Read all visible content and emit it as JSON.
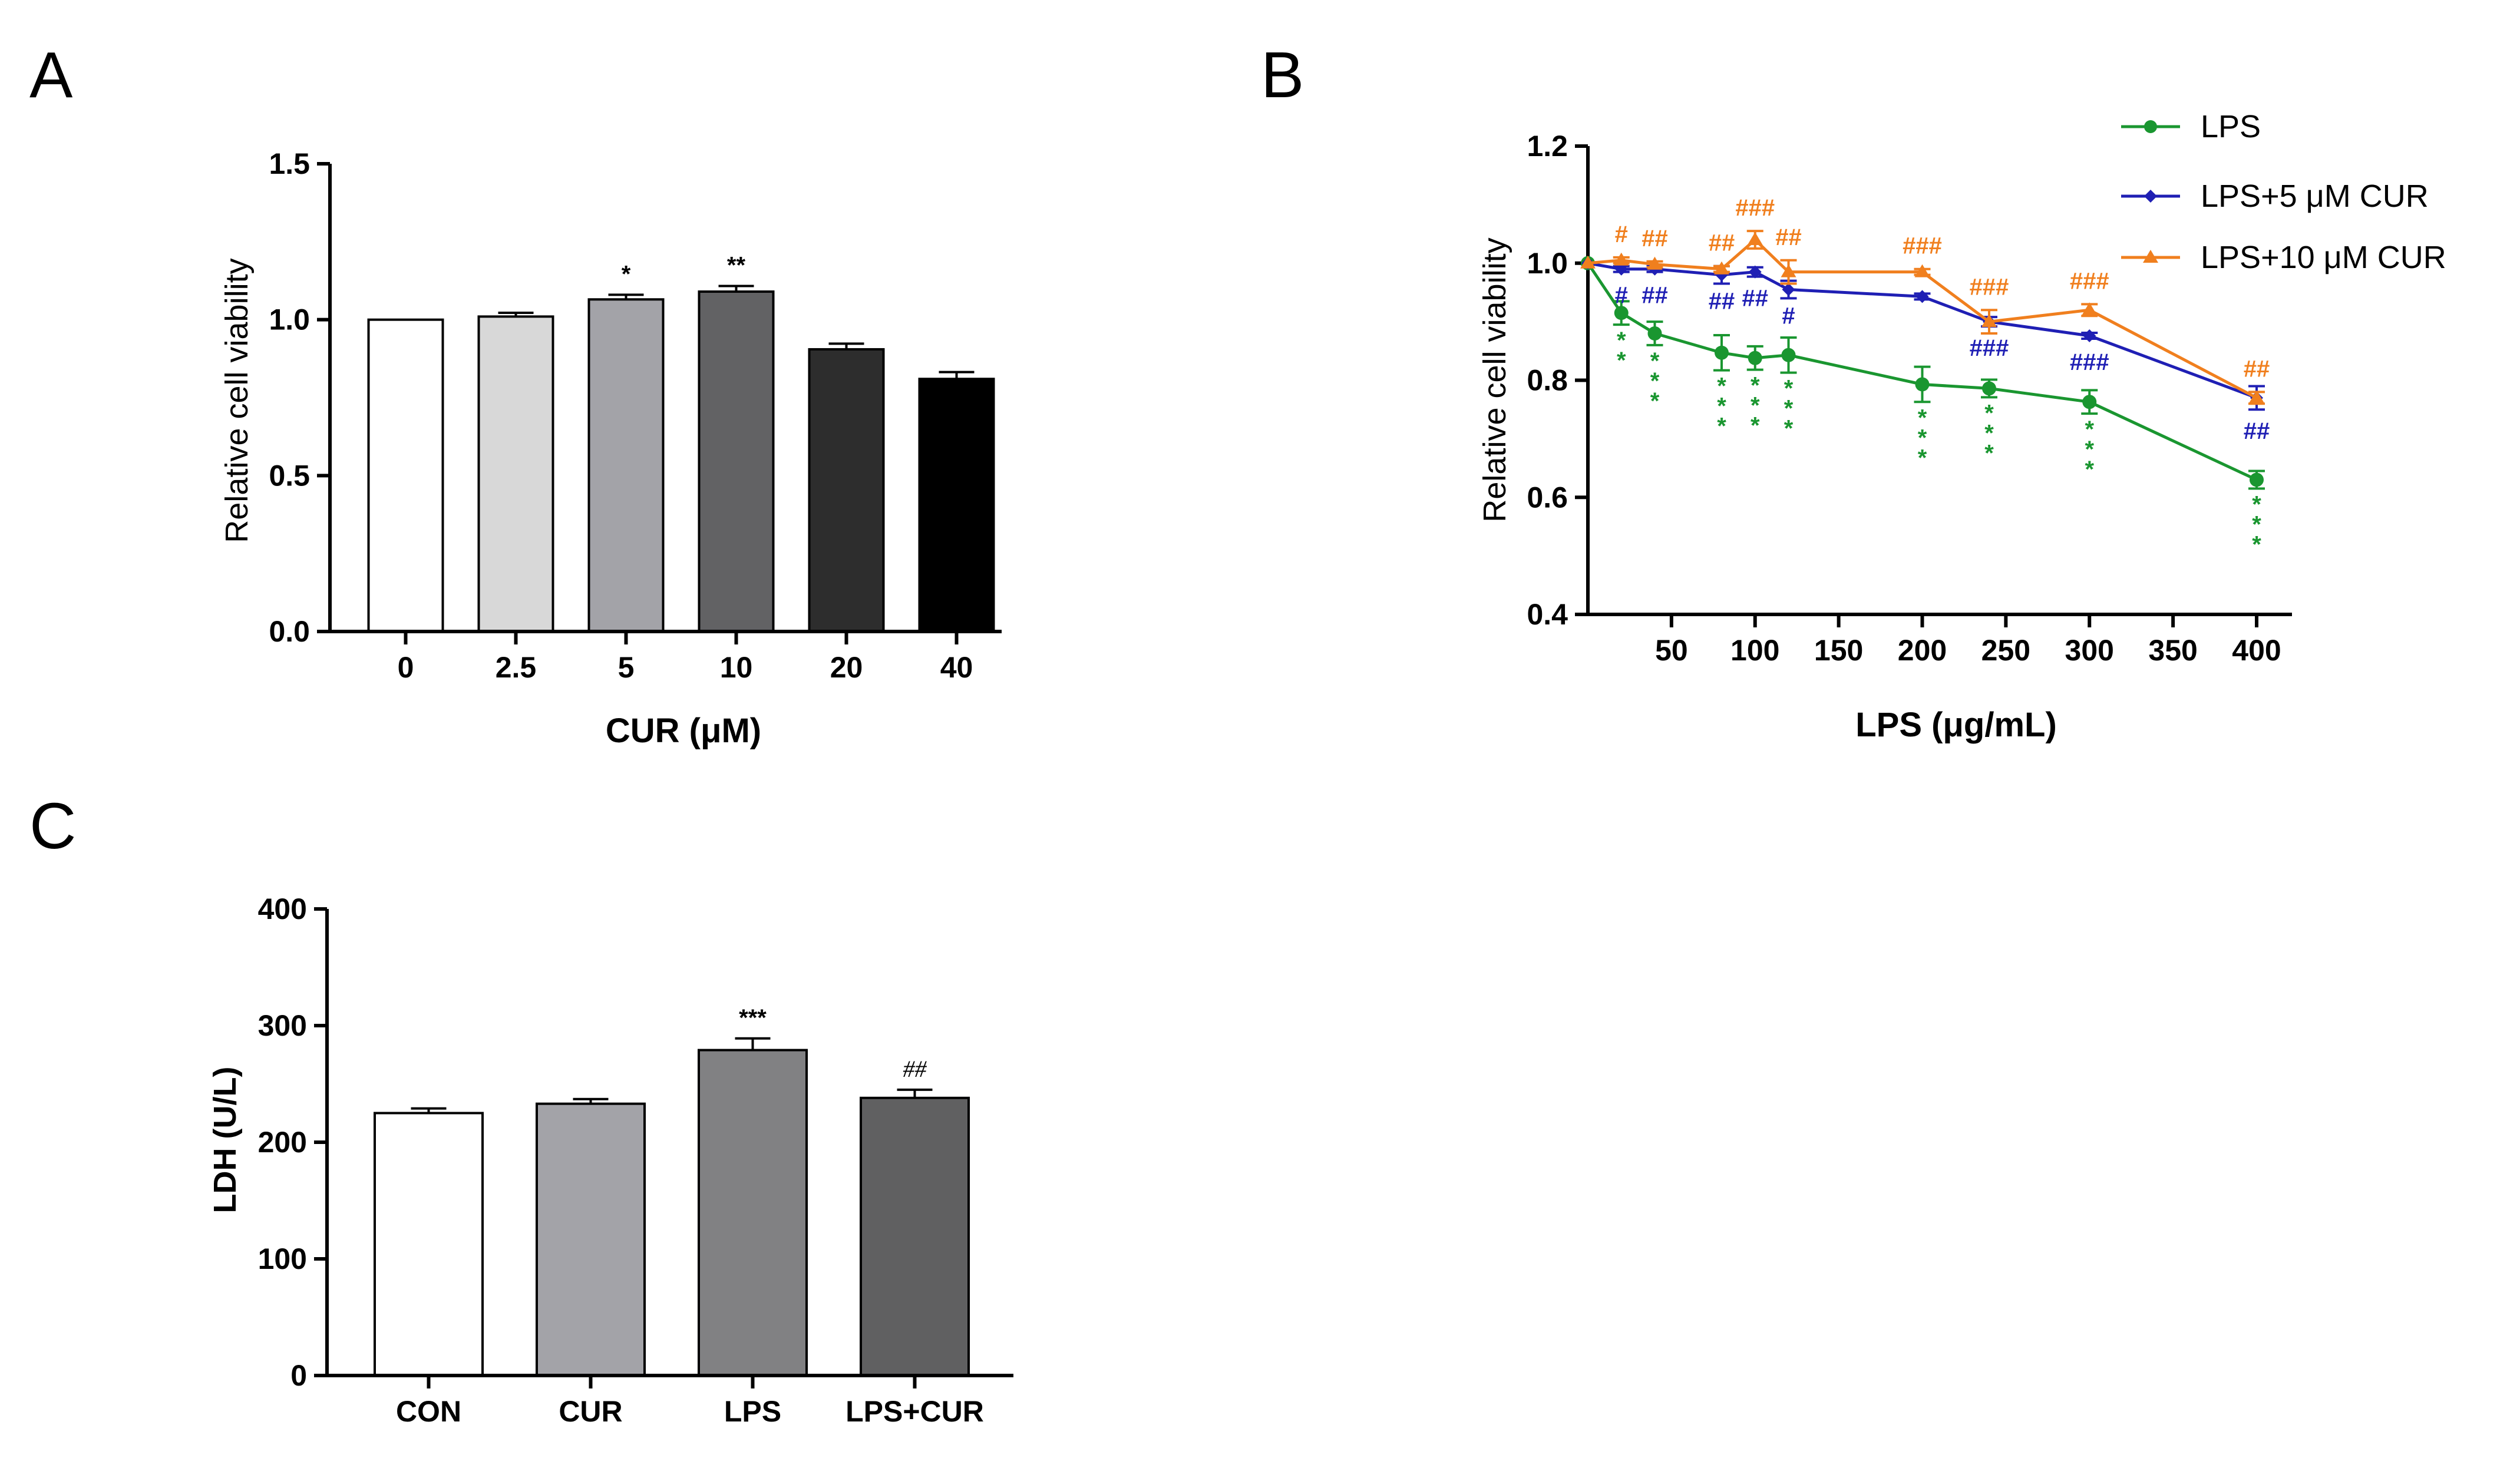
{
  "panel_labels": [
    "A",
    "B",
    "C"
  ],
  "chart_data": [
    {
      "id": "A",
      "type": "bar",
      "title": "",
      "xlabel": "CUR (μM)",
      "ylabel": "Relative cell viability",
      "categories": [
        "0",
        "2.5",
        "5",
        "10",
        "20",
        "40"
      ],
      "values": [
        1.0,
        1.01,
        1.065,
        1.09,
        0.905,
        0.81
      ],
      "errors": [
        0.0,
        0.012,
        0.015,
        0.018,
        0.018,
        0.022
      ],
      "annotations": [
        "",
        "",
        "*",
        "**",
        "",
        ""
      ],
      "colors": [
        "#ffffff",
        "#d8d8d8",
        "#a3a3a8",
        "#626264",
        "#2d2d2d",
        "#000000"
      ],
      "ylim": [
        0,
        1.5
      ],
      "yticks": [
        "0.0",
        "0.5",
        "1.0",
        "1.5"
      ]
    },
    {
      "id": "B",
      "type": "line",
      "title": "",
      "xlabel": "LPS (μg/mL)",
      "ylabel": "Relative cell viability",
      "xlim": [
        0,
        400
      ],
      "ylim": [
        0.4,
        1.2
      ],
      "xticks": [
        "50",
        "100",
        "150",
        "200",
        "250",
        "300",
        "350",
        "400"
      ],
      "yticks": [
        "0.4",
        "0.6",
        "0.8",
        "1.0",
        "1.2"
      ],
      "series": [
        {
          "name": "LPS",
          "color": "#1a9630",
          "marker": "circle",
          "x": [
            0,
            20,
            40,
            80,
            100,
            120,
            200,
            240,
            300,
            400
          ],
          "y": [
            1.0,
            0.915,
            0.88,
            0.847,
            0.838,
            0.843,
            0.793,
            0.786,
            0.763,
            0.63
          ],
          "err": [
            0,
            0.02,
            0.02,
            0.03,
            0.02,
            0.03,
            0.03,
            0.015,
            0.02,
            0.015
          ],
          "annotations": [
            "",
            "**",
            "***",
            "***",
            "***",
            "***",
            "***",
            "***",
            "***",
            "***"
          ]
        },
        {
          "name": "LPS+5 μM CUR",
          "color": "#1f1fb4",
          "marker": "diamond",
          "x": [
            0,
            20,
            40,
            80,
            100,
            120,
            200,
            240,
            300,
            400
          ],
          "y": [
            1.0,
            0.99,
            0.99,
            0.98,
            0.985,
            0.955,
            0.943,
            0.9,
            0.876,
            0.77
          ],
          "err": [
            0,
            0.005,
            0.005,
            0.015,
            0.008,
            0.015,
            0.005,
            0.008,
            0.005,
            0.02
          ],
          "annotations": [
            "",
            "#",
            "##",
            "##",
            "##",
            "#",
            "",
            "###",
            "###",
            "##"
          ]
        },
        {
          "name": "LPS+10 μM CUR",
          "color": "#f07f1e",
          "marker": "triangle",
          "x": [
            0,
            20,
            40,
            80,
            100,
            120,
            200,
            240,
            300,
            400
          ],
          "y": [
            1.0,
            1.005,
            0.998,
            0.99,
            1.04,
            0.985,
            0.985,
            0.9,
            0.92,
            0.77
          ],
          "err": [
            0,
            0.005,
            0.005,
            0.005,
            0.015,
            0.02,
            0.005,
            0.02,
            0.01,
            0.01
          ],
          "annotations": [
            "",
            "#",
            "##",
            "##",
            "###",
            "##",
            "###",
            "###",
            "###",
            "##"
          ]
        }
      ],
      "legend": "top-right"
    },
    {
      "id": "C",
      "type": "bar",
      "title": "",
      "xlabel": "",
      "ylabel": "LDH (U/L)",
      "categories": [
        "CON",
        "CUR",
        "LPS",
        "LPS+CUR"
      ],
      "values": [
        225,
        233,
        279,
        238
      ],
      "errors": [
        4,
        4,
        10,
        7
      ],
      "annotations": [
        "",
        "",
        "***",
        "##"
      ],
      "colors": [
        "#ffffff",
        "#a3a3a8",
        "#818183",
        "#606061"
      ],
      "ylim": [
        0,
        400
      ],
      "yticks": [
        "0",
        "100",
        "200",
        "300",
        "400"
      ]
    }
  ]
}
